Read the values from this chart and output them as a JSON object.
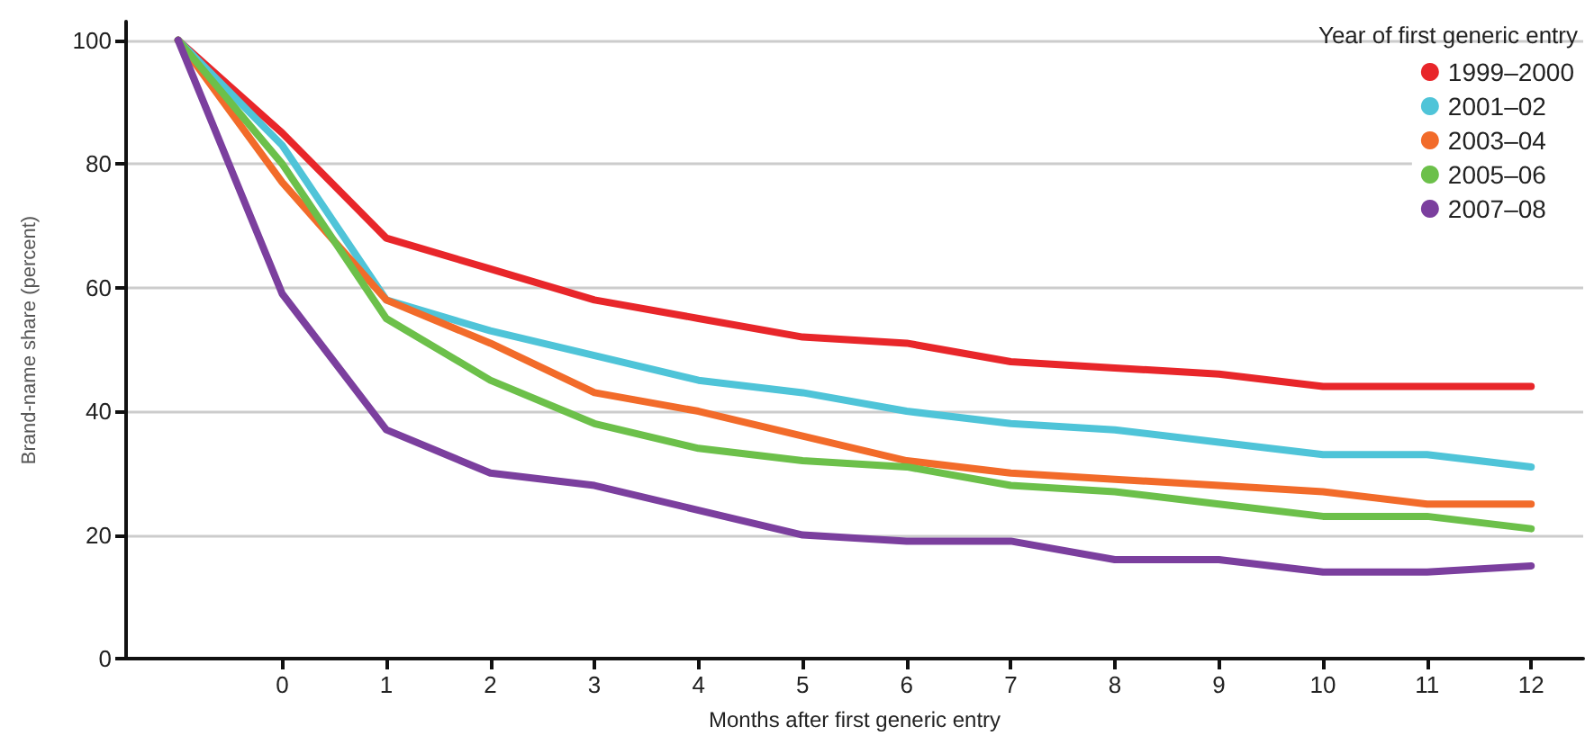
{
  "chart_data": {
    "type": "line",
    "xlabel": "Months after first generic entry",
    "ylabel": "Brand-name share (percent)",
    "legend_title": "Year of first generic entry",
    "x": [
      -1,
      0,
      1,
      2,
      3,
      4,
      5,
      6,
      7,
      8,
      9,
      10,
      11,
      12
    ],
    "series": [
      {
        "name": "1999–2000",
        "color": "#e8262a",
        "values": [
          100,
          85,
          68,
          63,
          58,
          55,
          52,
          51,
          48,
          47,
          46,
          44,
          44,
          44
        ]
      },
      {
        "name": "2001–02",
        "color": "#4fc4d8",
        "values": [
          100,
          83,
          58,
          53,
          49,
          45,
          43,
          40,
          38,
          37,
          35,
          33,
          33,
          31
        ]
      },
      {
        "name": "2003–04",
        "color": "#f26b2a",
        "values": [
          100,
          77,
          58,
          51,
          43,
          40,
          36,
          32,
          30,
          29,
          28,
          27,
          25,
          25
        ]
      },
      {
        "name": "2005–06",
        "color": "#6cc04a",
        "values": [
          100,
          80,
          55,
          45,
          38,
          34,
          32,
          31,
          28,
          27,
          25,
          23,
          23,
          21
        ]
      },
      {
        "name": "2007–08",
        "color": "#7b3f9e",
        "values": [
          100,
          59,
          37,
          30,
          28,
          24,
          20,
          19,
          19,
          16,
          16,
          14,
          14,
          15
        ]
      }
    ],
    "xlim": [
      -1.5,
      12.5
    ],
    "xticks": [
      0,
      1,
      2,
      3,
      4,
      5,
      6,
      7,
      8,
      9,
      10,
      11,
      12
    ],
    "ylim": [
      0,
      103
    ],
    "yticks": [
      0,
      20,
      40,
      60,
      80,
      100
    ],
    "grid": "y",
    "legend": "top right",
    "marker": "none",
    "line_style": "solid"
  }
}
